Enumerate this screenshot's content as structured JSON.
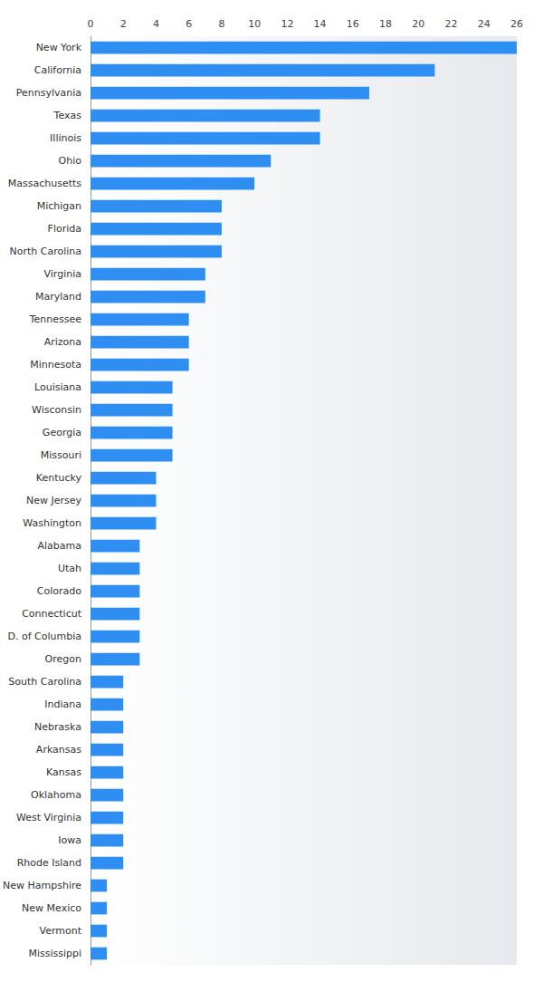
{
  "chart_data": {
    "type": "bar",
    "orientation": "horizontal",
    "color": "#2f8ef2",
    "grid": false,
    "categories": [
      "New York",
      "California",
      "Pennsylvania",
      "Texas",
      "Illinois",
      "Ohio",
      "Massachusetts",
      "Michigan",
      "Florida",
      "North Carolina",
      "Virginia",
      "Maryland",
      "Tennessee",
      "Arizona",
      "Minnesota",
      "Louisiana",
      "Wisconsin",
      "Georgia",
      "Missouri",
      "Kentucky",
      "New Jersey",
      "Washington",
      "Alabama",
      "Utah",
      "Colorado",
      "Connecticut",
      "D. of Columbia",
      "Oregon",
      "South Carolina",
      "Indiana",
      "Nebraska",
      "Arkansas",
      "Kansas",
      "Oklahoma",
      "West Virginia",
      "Iowa",
      "Rhode Island",
      "New Hampshire",
      "New Mexico",
      "Vermont",
      "Mississippi"
    ],
    "values": [
      26,
      21,
      17,
      14,
      14,
      11,
      10,
      8,
      8,
      8,
      7,
      7,
      6,
      6,
      6,
      5,
      5,
      5,
      5,
      4,
      4,
      4,
      3,
      3,
      3,
      3,
      3,
      3,
      2,
      2,
      2,
      2,
      2,
      2,
      2,
      2,
      2,
      1,
      1,
      1,
      1
    ],
    "xlim": [
      0,
      26
    ],
    "xticks": [
      0,
      2,
      4,
      6,
      8,
      10,
      12,
      14,
      16,
      18,
      20,
      22,
      24,
      26
    ]
  }
}
